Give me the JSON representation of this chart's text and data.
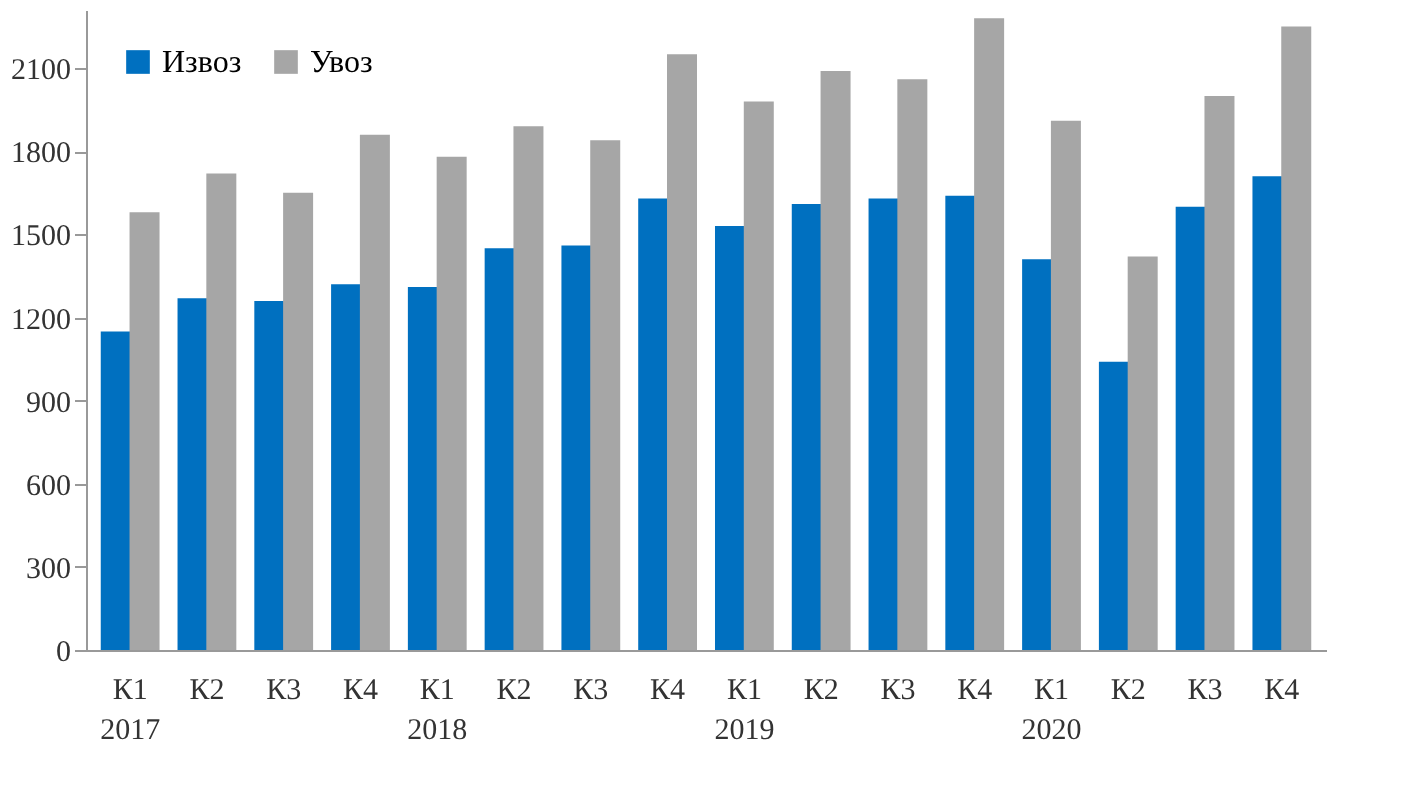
{
  "chart_data": {
    "type": "bar",
    "categories": [
      "К1\n2017",
      "К2",
      "К3",
      "К4",
      "К1\n2018",
      "К2",
      "К3",
      "К4",
      "К1\n2019",
      "К2",
      "К3",
      "К4",
      "К1\n2020",
      "К2",
      "К3",
      "К4"
    ],
    "series": [
      {
        "name": "Извоз",
        "color": "#0070c0",
        "values": [
          1150,
          1270,
          1260,
          1320,
          1310,
          1450,
          1460,
          1630,
          1530,
          1610,
          1630,
          1640,
          1410,
          1040,
          1600,
          1710
        ]
      },
      {
        "name": "Увоз",
        "color": "#a6a6a6",
        "values": [
          1580,
          1720,
          1650,
          1860,
          1780,
          1890,
          1840,
          2150,
          1980,
          2090,
          2060,
          2280,
          1910,
          1420,
          2000,
          2250
        ]
      }
    ],
    "ylim": [
      0,
      2310
    ],
    "yticks": [
      0,
      300,
      600,
      900,
      1200,
      1500,
      1800,
      2100
    ],
    "grid": false,
    "legend": "top left"
  }
}
